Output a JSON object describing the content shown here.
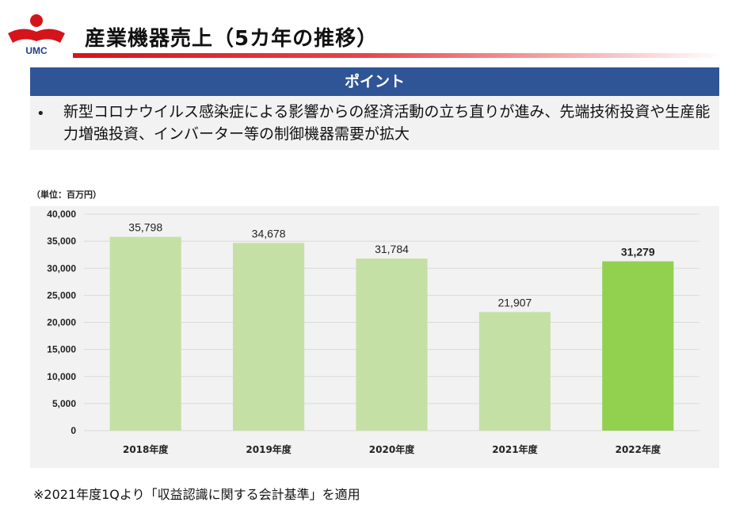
{
  "header": {
    "logo_text": "UMC",
    "title": "産業機器売上（5カ年の推移）"
  },
  "point": {
    "label": "ポイント",
    "bullet": "•",
    "text": "新型コロナウイルス感染症による影響からの経済活動の立ち直りが進み、先端技術投資や生産能力増強投資、インバーター等の制御機器需要が拡大"
  },
  "unit_label": "（単位：百万円）",
  "note": "※2021年度1Qより「収益認識に関する会計基準」を適用",
  "colors": {
    "bar": "#c5e0a5",
    "bar_highlight": "#92d050",
    "header_bar": "#2f5597",
    "accent_red": "#d4141b"
  },
  "chart_data": {
    "type": "bar",
    "categories": [
      "2018年度",
      "2019年度",
      "2020年度",
      "2021年度",
      "2022年度"
    ],
    "values": [
      35798,
      34678,
      31784,
      21907,
      31279
    ],
    "value_labels": [
      "35,798",
      "34,678",
      "31,784",
      "21,907",
      "31,279"
    ],
    "highlight_index": 4,
    "ylim": [
      0,
      40000
    ],
    "yticks": [
      0,
      5000,
      10000,
      15000,
      20000,
      25000,
      30000,
      35000,
      40000
    ],
    "ytick_labels": [
      "0",
      "5,000",
      "10,000",
      "15,000",
      "20,000",
      "25,000",
      "30,000",
      "35,000",
      "40,000"
    ],
    "grid": true,
    "title": "",
    "xlabel": "",
    "ylabel": ""
  }
}
